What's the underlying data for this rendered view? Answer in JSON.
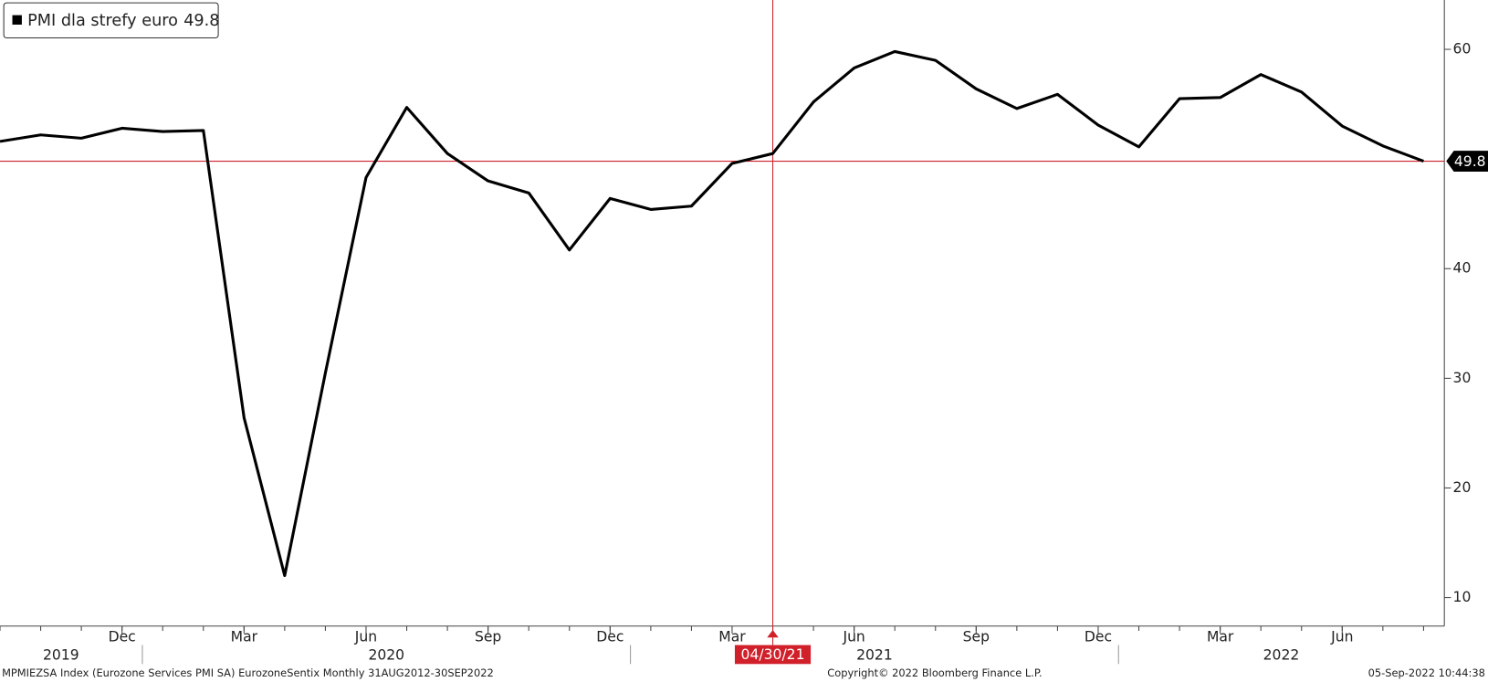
{
  "chart_data": {
    "type": "line",
    "legend_name": "PMI dla strefy euro",
    "x": [
      "2019-09",
      "2019-10",
      "2019-11",
      "2019-12",
      "2020-01",
      "2020-02",
      "2020-03",
      "2020-04",
      "2020-05",
      "2020-06",
      "2020-07",
      "2020-08",
      "2020-09",
      "2020-10",
      "2020-11",
      "2020-12",
      "2021-01",
      "2021-02",
      "2021-03",
      "2021-04",
      "2021-05",
      "2021-06",
      "2021-07",
      "2021-08",
      "2021-09",
      "2021-10",
      "2021-11",
      "2021-12",
      "2022-01",
      "2022-02",
      "2022-03",
      "2022-04",
      "2022-05",
      "2022-06",
      "2022-07",
      "2022-08"
    ],
    "series": [
      {
        "name": "PMI dla strefy euro",
        "color": "#000000",
        "values": [
          51.6,
          52.2,
          51.9,
          52.8,
          52.5,
          52.6,
          26.4,
          12.0,
          30.5,
          48.3,
          54.7,
          50.5,
          48.0,
          46.9,
          41.7,
          46.4,
          45.4,
          45.7,
          49.6,
          50.5,
          55.2,
          58.3,
          59.8,
          59.0,
          56.4,
          54.6,
          55.9,
          53.1,
          51.1,
          55.5,
          55.6,
          57.7,
          56.1,
          53.0,
          51.2,
          49.8
        ]
      }
    ],
    "xticks": [
      {
        "value": "2019-12",
        "label": "Dec"
      },
      {
        "value": "2020-03",
        "label": "Mar"
      },
      {
        "value": "2020-06",
        "label": "Jun"
      },
      {
        "value": "2020-09",
        "label": "Sep"
      },
      {
        "value": "2020-12",
        "label": "Dec"
      },
      {
        "value": "2021-03",
        "label": "Mar"
      },
      {
        "value": "2021-06",
        "label": "Jun"
      },
      {
        "value": "2021-09",
        "label": "Sep"
      },
      {
        "value": "2021-12",
        "label": "Dec"
      },
      {
        "value": "2022-03",
        "label": "Mar"
      },
      {
        "value": "2022-06",
        "label": "Jun"
      }
    ],
    "year_labels": [
      "2019",
      "2020",
      "2021",
      "2022"
    ],
    "ylim": [
      7.4,
      64.5
    ],
    "yticks": [
      10,
      20,
      30,
      40,
      60
    ],
    "crosshair_x": "2021-04",
    "crosshair_label": "04/30/21",
    "reference_color": "#d0202a",
    "footer_left": "MPMIEZSA Index (Eurozone Services PMI SA) EurozoneSentix  Monthly 31AUG2012-30SEP2022",
    "footer_center": "Copyright© 2022 Bloomberg Finance L.P.",
    "footer_right": "05-Sep-2022 10:44:38"
  }
}
